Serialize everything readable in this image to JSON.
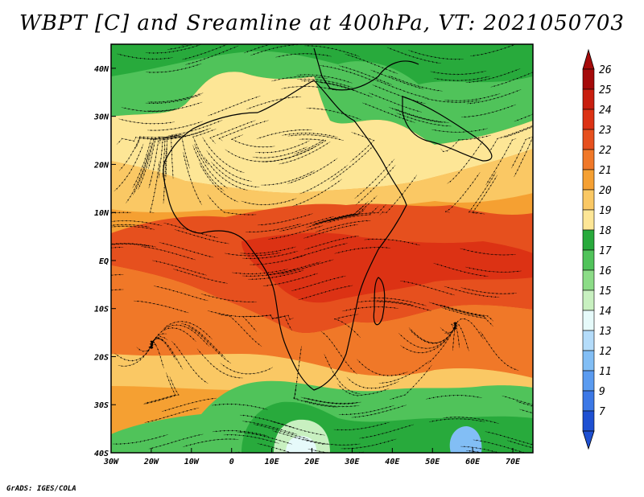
{
  "title": "WBPT [C] and Sreamline at 400hPa, VT: 2021050703",
  "credit": "GrADS: IGES/COLA",
  "map": {
    "lon_range": [
      -30,
      75
    ],
    "lat_range": [
      -40,
      45
    ],
    "lon_ticks": [
      {
        "value": -30,
        "label": "30W"
      },
      {
        "value": -20,
        "label": "20W"
      },
      {
        "value": -10,
        "label": "10W"
      },
      {
        "value": 0,
        "label": "0"
      },
      {
        "value": 10,
        "label": "10E"
      },
      {
        "value": 20,
        "label": "20E"
      },
      {
        "value": 30,
        "label": "30E"
      },
      {
        "value": 40,
        "label": "40E"
      },
      {
        "value": 50,
        "label": "50E"
      },
      {
        "value": 60,
        "label": "60E"
      },
      {
        "value": 70,
        "label": "70E"
      }
    ],
    "lat_ticks": [
      {
        "value": 40,
        "label": "40N"
      },
      {
        "value": 30,
        "label": "30N"
      },
      {
        "value": 20,
        "label": "20N"
      },
      {
        "value": 10,
        "label": "10N"
      },
      {
        "value": 0,
        "label": "EQ"
      },
      {
        "value": -10,
        "label": "10S"
      },
      {
        "value": -20,
        "label": "20S"
      },
      {
        "value": -30,
        "label": "30S"
      },
      {
        "value": -40,
        "label": "40S"
      }
    ]
  },
  "colorbar": {
    "levels": [
      {
        "label": "26",
        "color": "#a50a0a"
      },
      {
        "label": "25",
        "color": "#c81e0f"
      },
      {
        "label": "24",
        "color": "#dc3214"
      },
      {
        "label": "23",
        "color": "#e6501e"
      },
      {
        "label": "22",
        "color": "#f07828"
      },
      {
        "label": "21",
        "color": "#f5a032"
      },
      {
        "label": "20",
        "color": "#fac864"
      },
      {
        "label": "19",
        "color": "#fde696"
      },
      {
        "label": "18",
        "color": "#28aa3c"
      },
      {
        "label": "17",
        "color": "#50c35a"
      },
      {
        "label": "16",
        "color": "#8cdc87"
      },
      {
        "label": "15",
        "color": "#c8f0c0"
      },
      {
        "label": "14",
        "color": "#e6fafa"
      },
      {
        "label": "13",
        "color": "#b4dcfa"
      },
      {
        "label": "12",
        "color": "#82bef5"
      },
      {
        "label": "11",
        "color": "#5a9bf0"
      },
      {
        "label": "9",
        "color": "#3c78e6"
      },
      {
        "label": "7",
        "color": "#1e50d2"
      }
    ]
  }
}
